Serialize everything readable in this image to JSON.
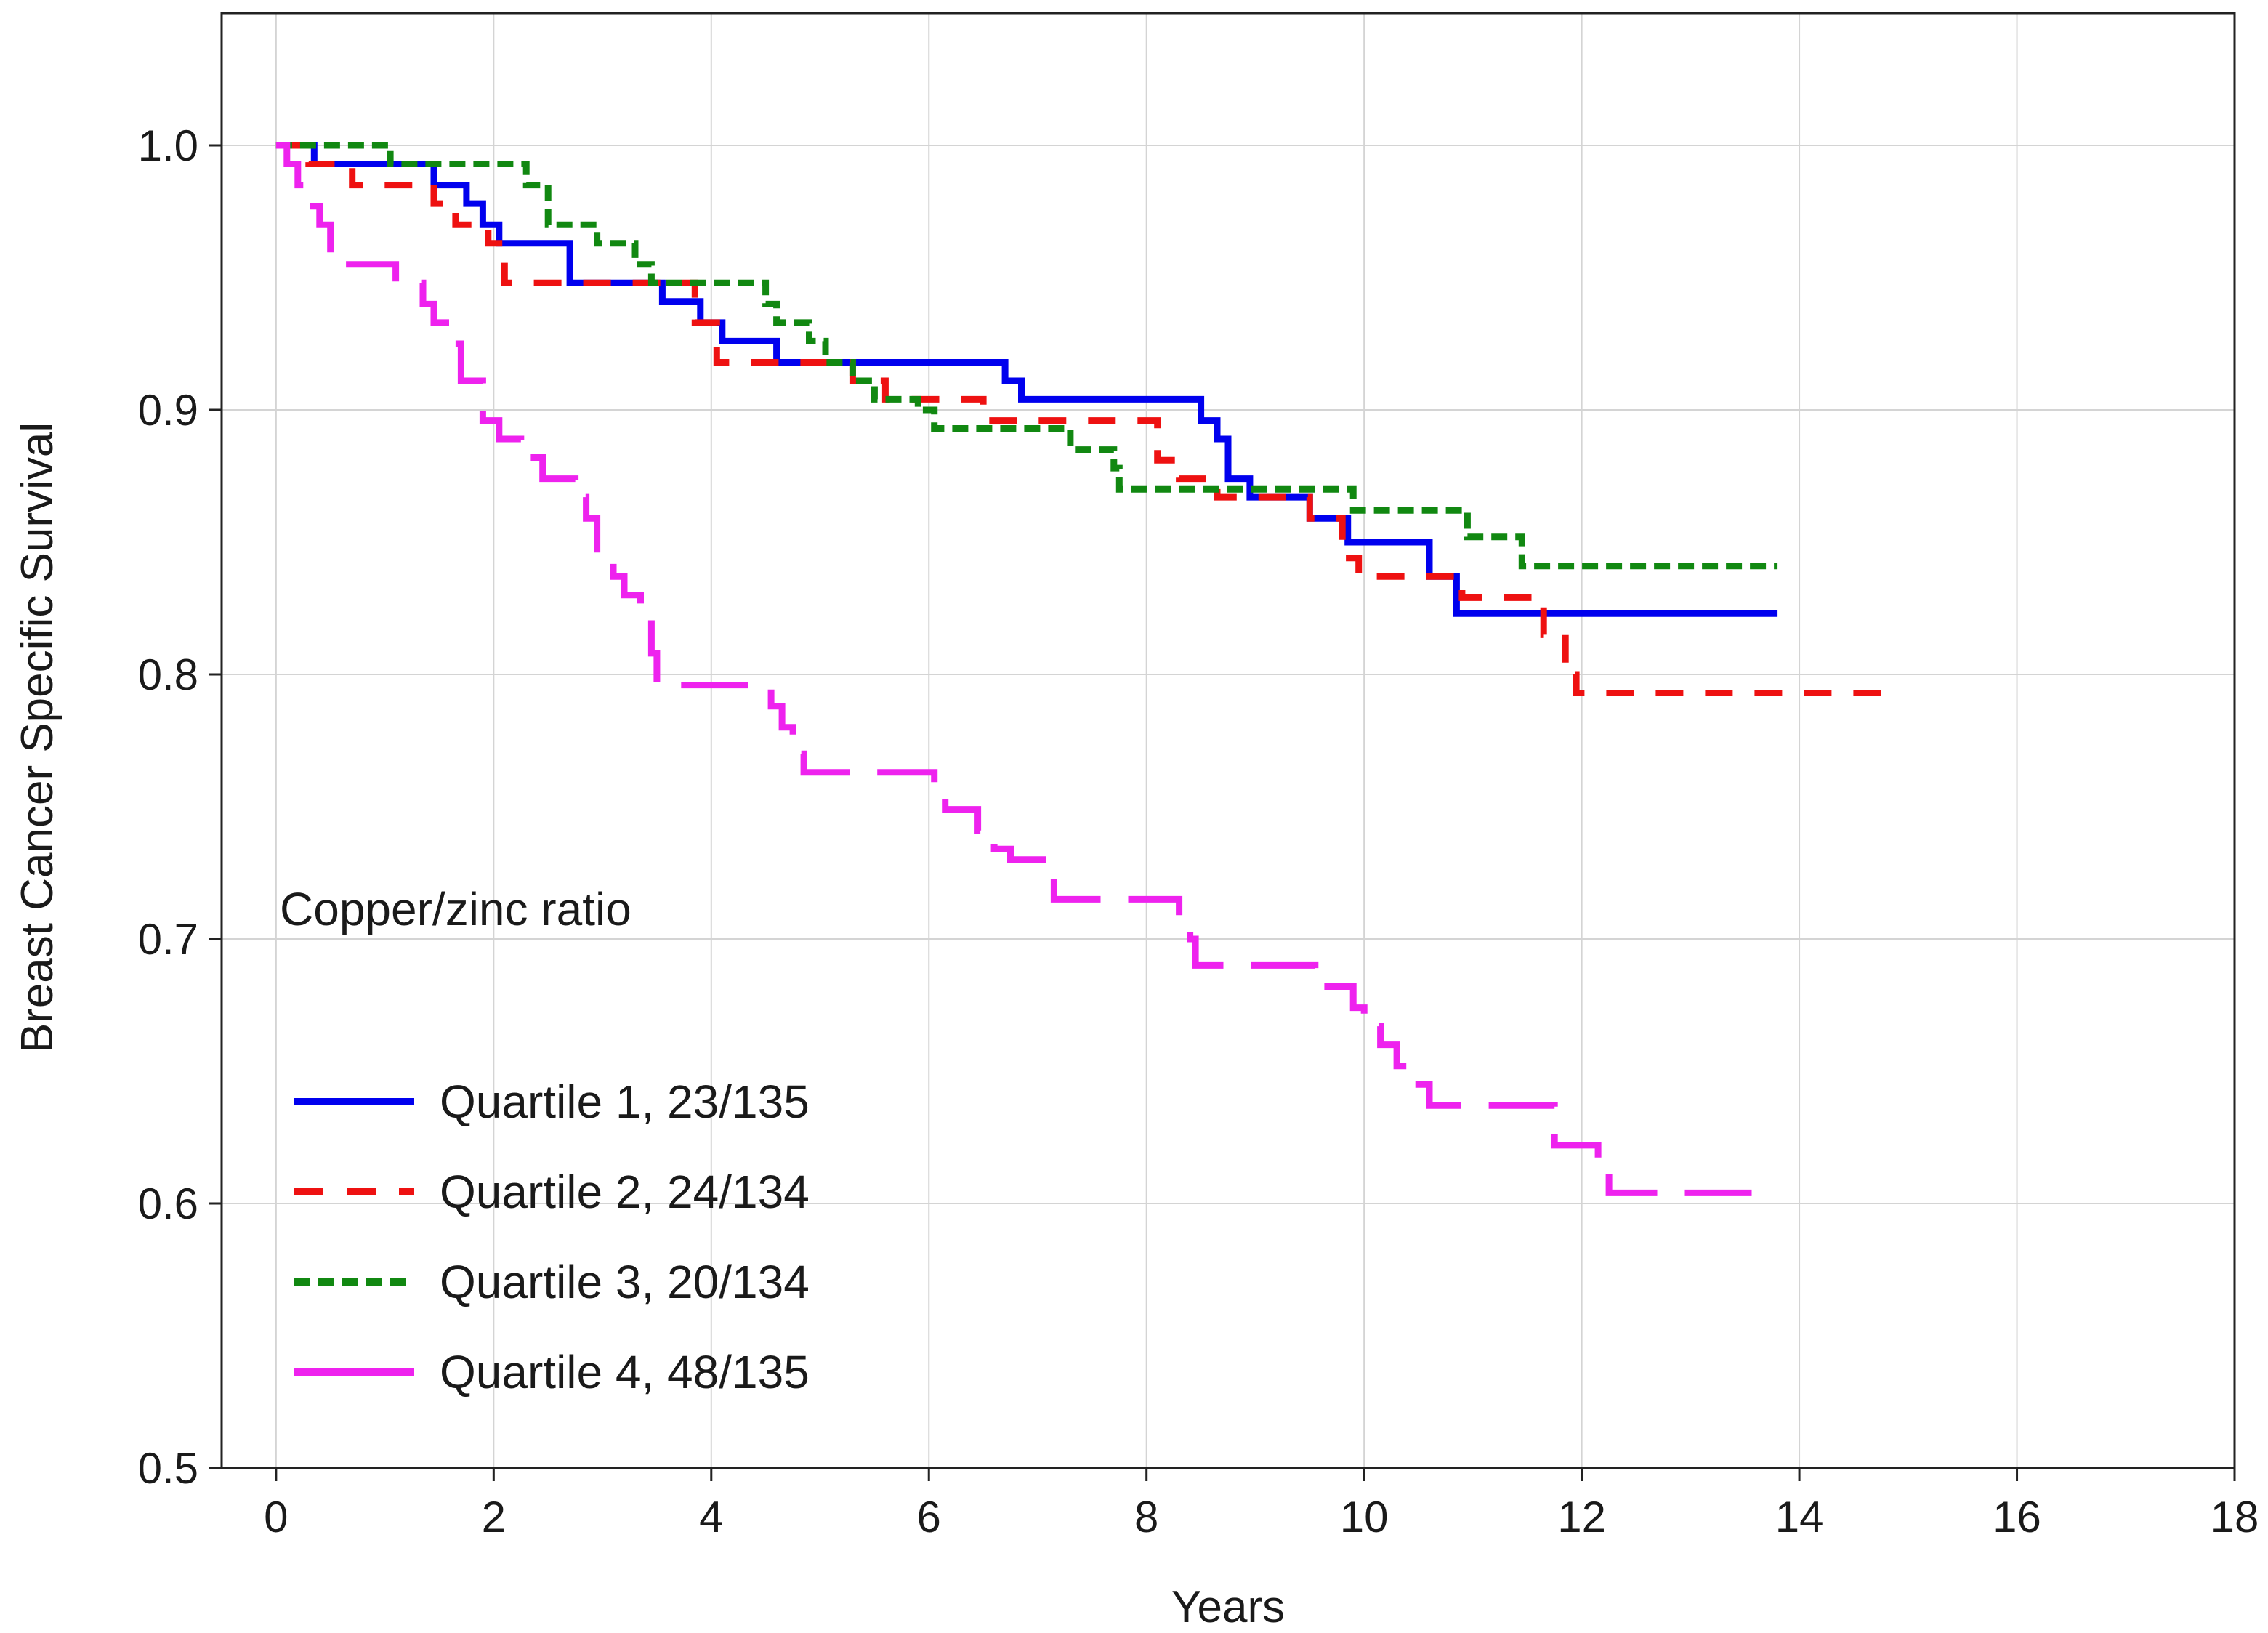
{
  "chart_data": {
    "type": "line",
    "subtype": "kaplan-meier-step",
    "title": "",
    "xlabel": "Years",
    "ylabel": "Breast Cancer Specific Survival",
    "xlim": [
      -0.5,
      18
    ],
    "ylim": [
      0.5,
      1.05
    ],
    "xticks": [
      0,
      2,
      4,
      6,
      8,
      10,
      12,
      14,
      16,
      18
    ],
    "yticks": [
      0.5,
      0.6,
      0.7,
      0.8,
      0.9,
      1.0
    ],
    "xtick_labels": [
      "0",
      "2",
      "4",
      "6",
      "8",
      "10",
      "12",
      "14",
      "16",
      "18"
    ],
    "ytick_labels": [
      "0.5",
      "0.6",
      "0.7",
      "0.8",
      "0.9",
      "1.0"
    ],
    "grid": true,
    "legend_title": "Copper/zinc ratio",
    "legend_position": "lower-left",
    "series": [
      {
        "name": "Quartile 1, 23/135",
        "color": "#0000ee",
        "dash": "solid",
        "steps": [
          [
            0,
            1.0
          ],
          [
            0.35,
            0.993
          ],
          [
            1.45,
            0.985
          ],
          [
            1.75,
            0.978
          ],
          [
            1.9,
            0.97
          ],
          [
            2.05,
            0.963
          ],
          [
            2.7,
            0.948
          ],
          [
            3.55,
            0.941
          ],
          [
            3.9,
            0.933
          ],
          [
            4.1,
            0.926
          ],
          [
            4.6,
            0.918
          ],
          [
            6.7,
            0.911
          ],
          [
            6.85,
            0.904
          ],
          [
            8.5,
            0.896
          ],
          [
            8.65,
            0.889
          ],
          [
            8.75,
            0.874
          ],
          [
            8.95,
            0.867
          ],
          [
            9.5,
            0.859
          ],
          [
            9.85,
            0.85
          ],
          [
            10.6,
            0.837
          ],
          [
            10.85,
            0.823
          ]
        ],
        "end_x": 13.8
      },
      {
        "name": "Quartile 2, 24/134",
        "color": "#ee1111",
        "dash": "long",
        "steps": [
          [
            0,
            1.0
          ],
          [
            0.3,
            0.993
          ],
          [
            0.7,
            0.985
          ],
          [
            1.45,
            0.978
          ],
          [
            1.65,
            0.97
          ],
          [
            1.95,
            0.963
          ],
          [
            2.1,
            0.948
          ],
          [
            3.85,
            0.933
          ],
          [
            4.05,
            0.918
          ],
          [
            5.3,
            0.911
          ],
          [
            5.6,
            0.904
          ],
          [
            6.5,
            0.896
          ],
          [
            8.1,
            0.881
          ],
          [
            8.3,
            0.874
          ],
          [
            8.65,
            0.867
          ],
          [
            9.5,
            0.859
          ],
          [
            9.8,
            0.844
          ],
          [
            9.95,
            0.837
          ],
          [
            10.9,
            0.829
          ],
          [
            11.65,
            0.815
          ],
          [
            11.85,
            0.8
          ],
          [
            11.95,
            0.793
          ]
        ],
        "end_x": 14.9
      },
      {
        "name": "Quartile 3, 20/134",
        "color": "#118811",
        "dash": "short",
        "steps": [
          [
            0,
            1.0
          ],
          [
            1.05,
            0.993
          ],
          [
            2.3,
            0.985
          ],
          [
            2.5,
            0.97
          ],
          [
            2.95,
            0.963
          ],
          [
            3.3,
            0.955
          ],
          [
            3.45,
            0.948
          ],
          [
            4.5,
            0.94
          ],
          [
            4.6,
            0.933
          ],
          [
            4.9,
            0.926
          ],
          [
            5.05,
            0.918
          ],
          [
            5.3,
            0.911
          ],
          [
            5.5,
            0.904
          ],
          [
            5.9,
            0.9
          ],
          [
            6.05,
            0.893
          ],
          [
            7.3,
            0.885
          ],
          [
            7.7,
            0.878
          ],
          [
            7.75,
            0.87
          ],
          [
            8.9,
            0.87
          ],
          [
            9.9,
            0.862
          ],
          [
            10.95,
            0.852
          ],
          [
            11.45,
            0.841
          ]
        ],
        "end_x": 13.8
      },
      {
        "name": "Quartile 4, 48/135",
        "color": "#ee22ee",
        "dash": "long-gap",
        "steps": [
          [
            0,
            1.0
          ],
          [
            0.1,
            0.993
          ],
          [
            0.2,
            0.985
          ],
          [
            0.3,
            0.977
          ],
          [
            0.4,
            0.97
          ],
          [
            0.5,
            0.955
          ],
          [
            1.1,
            0.948
          ],
          [
            1.35,
            0.94
          ],
          [
            1.45,
            0.933
          ],
          [
            1.6,
            0.925
          ],
          [
            1.7,
            0.911
          ],
          [
            1.9,
            0.896
          ],
          [
            2.05,
            0.889
          ],
          [
            2.25,
            0.882
          ],
          [
            2.45,
            0.874
          ],
          [
            2.75,
            0.867
          ],
          [
            2.85,
            0.859
          ],
          [
            2.95,
            0.845
          ],
          [
            3.1,
            0.837
          ],
          [
            3.2,
            0.83
          ],
          [
            3.35,
            0.822
          ],
          [
            3.45,
            0.808
          ],
          [
            3.5,
            0.796
          ],
          [
            4.55,
            0.788
          ],
          [
            4.65,
            0.78
          ],
          [
            4.75,
            0.77
          ],
          [
            4.85,
            0.763
          ],
          [
            6.05,
            0.756
          ],
          [
            6.15,
            0.749
          ],
          [
            6.45,
            0.741
          ],
          [
            6.6,
            0.734
          ],
          [
            6.75,
            0.73
          ],
          [
            7.15,
            0.715
          ],
          [
            8.3,
            0.708
          ],
          [
            8.4,
            0.7
          ],
          [
            8.45,
            0.69
          ],
          [
            9.55,
            0.682
          ],
          [
            9.9,
            0.674
          ],
          [
            10.0,
            0.667
          ],
          [
            10.15,
            0.66
          ],
          [
            10.3,
            0.652
          ],
          [
            10.4,
            0.645
          ],
          [
            10.6,
            0.637
          ],
          [
            11.75,
            0.622
          ],
          [
            12.15,
            0.615
          ],
          [
            12.25,
            0.604
          ]
        ],
        "end_x": 13.8
      }
    ]
  }
}
